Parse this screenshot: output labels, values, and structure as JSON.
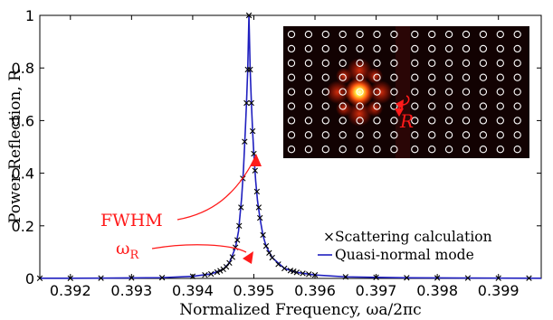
{
  "chart_data": {
    "type": "line",
    "xlabel": "Normalized Frequency, ωa/2πc",
    "ylabel": "Power Reflection, R",
    "xlim": [
      0.3915,
      0.3997
    ],
    "ylim": [
      0,
      1
    ],
    "xticks": [
      "0.392",
      "0.393",
      "0.394",
      "0.395",
      "0.396",
      "0.397",
      "0.398",
      "0.399"
    ],
    "yticks": [
      "0",
      "0.2",
      "0.4",
      "0.6",
      "0.8",
      "1"
    ],
    "grid": false,
    "legend_position": "bottom-right",
    "peak": {
      "x0": 0.39492,
      "fwhm": 0.00018,
      "max": 1.0
    },
    "series": [
      {
        "name": "Quasi-normal mode",
        "style": "line",
        "color": "#1f1fbf",
        "x": [
          0.3915,
          0.392,
          0.3925,
          0.393,
          0.3935,
          0.394,
          0.3943,
          0.3945,
          0.3946,
          0.3947,
          0.39475,
          0.3948,
          0.39483,
          0.39486,
          0.39488,
          0.3949,
          0.39492,
          0.39494,
          0.39496,
          0.39498,
          0.395,
          0.39503,
          0.39506,
          0.3951,
          0.39515,
          0.3952,
          0.3953,
          0.3955,
          0.3957,
          0.396,
          0.3965,
          0.397,
          0.3975,
          0.398,
          0.3985,
          0.399,
          0.3997
        ],
        "y": [
          0.0006,
          0.0008,
          0.0012,
          0.0018,
          0.003,
          0.008,
          0.017,
          0.035,
          0.059,
          0.118,
          0.18,
          0.305,
          0.412,
          0.559,
          0.667,
          0.794,
          1.0,
          0.794,
          0.667,
          0.559,
          0.474,
          0.371,
          0.295,
          0.229,
          0.163,
          0.123,
          0.079,
          0.038,
          0.023,
          0.013,
          0.006,
          0.004,
          0.0025,
          0.0018,
          0.0014,
          0.0011,
          0.0008
        ]
      },
      {
        "name": "Scattering calculation",
        "style": "markers",
        "marker": "×",
        "color": "#000000",
        "x": [
          0.3915,
          0.392,
          0.3925,
          0.393,
          0.3935,
          0.394,
          0.3942,
          0.3943,
          0.3944,
          0.39445,
          0.3945,
          0.39455,
          0.3946,
          0.39465,
          0.3947,
          0.39473,
          0.39476,
          0.39479,
          0.39482,
          0.39485,
          0.39488,
          0.3949,
          0.39492,
          0.39494,
          0.39496,
          0.39498,
          0.395,
          0.39502,
          0.39505,
          0.39508,
          0.3951,
          0.39515,
          0.3952,
          0.39525,
          0.3953,
          0.3954,
          0.3955,
          0.3956,
          0.39565,
          0.3957,
          0.3958,
          0.3959,
          0.396,
          0.3965,
          0.397,
          0.3975,
          0.398,
          0.3985,
          0.399,
          0.3995
        ],
        "y": [
          0.0006,
          0.0008,
          0.0012,
          0.0018,
          0.003,
          0.008,
          0.013,
          0.017,
          0.024,
          0.029,
          0.035,
          0.044,
          0.059,
          0.081,
          0.118,
          0.146,
          0.2,
          0.27,
          0.38,
          0.52,
          0.667,
          0.794,
          1.0,
          0.794,
          0.667,
          0.56,
          0.474,
          0.41,
          0.33,
          0.27,
          0.23,
          0.165,
          0.123,
          0.097,
          0.079,
          0.054,
          0.038,
          0.03,
          0.027,
          0.023,
          0.019,
          0.016,
          0.013,
          0.006,
          0.004,
          0.0025,
          0.0018,
          0.0014,
          0.0011,
          0.0009
        ]
      }
    ],
    "annotations": {
      "fwhm": "FWHM",
      "omega_main": "ω",
      "omega_sub": "R"
    },
    "inset": {
      "label": "R",
      "colors": {
        "background": "#120202",
        "defect": "#2a0606",
        "rod": "#ffffff",
        "hot": "#ffff9a",
        "warm": "#ff5a10",
        "annotation": "#ff1a1a"
      },
      "rows": 10,
      "cols": 14
    }
  }
}
